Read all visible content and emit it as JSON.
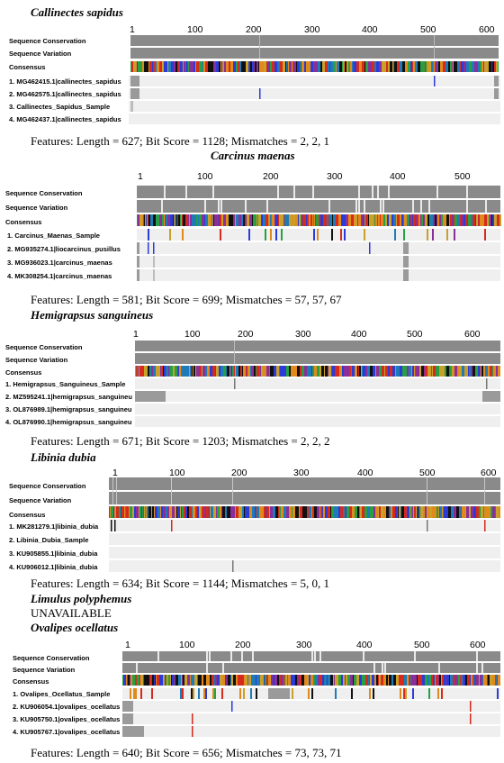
{
  "panels": [
    {
      "species": "Callinectes sapidus",
      "row_labels": [
        "Sequence Conservation",
        "Sequence Variation",
        "Consensus"
      ],
      "ticks": [
        "1",
        "100",
        "200",
        "300",
        "400",
        "500",
        "600"
      ],
      "sequences": [
        "1. MG462415.1|callinectes_sapidus",
        "2. MG462575.1|callinectes_sapidus",
        "3. Callinectes_Sapidus_Sample",
        "4. MG462437.1|callinectes_sapidus"
      ],
      "features": "Features: Length = 627; Bit Score = 1128; Mismatches = 2, 2, 1"
    },
    {
      "species": "Carcinus maenas",
      "row_labels": [
        "Sequence Conservation",
        "Sequence Variation",
        "Consensus"
      ],
      "ticks": [
        "1",
        "100",
        "200",
        "300",
        "400",
        "500"
      ],
      "sequences": [
        "1. Carcinus_Maenas_Sample",
        "2. MG935274.1|liocarcinus_pusillus",
        "3. MG936023.1|carcinus_maenas",
        "4. MK308254.1|carcinus_maenas"
      ],
      "features": "Features: Length = 581; Bit Score = 699; Mismatches = 57, 57, 67"
    },
    {
      "species": "Hemigrapsus sanguineus",
      "row_labels": [
        "Sequence Conservation",
        "Sequence Variation",
        "Consensus"
      ],
      "ticks": [
        "1",
        "100",
        "200",
        "300",
        "400",
        "500",
        "600"
      ],
      "sequences": [
        "1. Hemigrapsus_Sanguineus_Sample",
        "2. MZ595241.1|hemigrapsus_sanguineu",
        "3. OL876989.1|hemigrapsus_sanguineu",
        "4. OL876990.1|hemigrapsus_sanguineu"
      ],
      "features": "Features: Length = 671; Bit Score = 1203; Mismatches = 2, 2, 2"
    },
    {
      "species": "Libinia dubia",
      "row_labels": [
        "Sequence Conservation",
        "Sequence Variation",
        "Consensus"
      ],
      "ticks": [
        "1",
        "100",
        "200",
        "300",
        "400",
        "500",
        "600"
      ],
      "sequences": [
        "1. MK281279.1|libinia_dubia",
        "2. Libinia_Dubia_Sample",
        "3. KU905855.1|libinia_dubia",
        "4. KU906012.1|libinia_dubia"
      ],
      "features": "Features: Length = 634; Bit Score = 1144; Mismatches = 5, 0, 1"
    },
    {
      "species": "Limulus polyphemus",
      "unavailable": "UNAVAILABLE"
    },
    {
      "species": "Ovalipes ocellatus",
      "row_labels": [
        "Sequence Conservation",
        "Sequence Variation",
        "Consensus"
      ],
      "ticks": [
        "1",
        "100",
        "200",
        "300",
        "400",
        "500",
        "600"
      ],
      "sequences": [
        "1. Ovalipes_Ocellatus_Sample",
        "2. KU906054.1|ovalipes_ocellatus",
        "3. KU905750.1|ovalipes_ocellatus",
        "4. KU905767.1|ovalipes_ocellatus"
      ],
      "features": "Features: Length = 640; Bit Score = 656; Mismatches = 73, 73, 71"
    }
  ],
  "colors": {
    "bar_gray": "#8a8a8a",
    "row_bg": "#efefef",
    "nucleotides": [
      "#d62a1e",
      "#2b3bd8",
      "#26a042",
      "#111111",
      "#8a2e9a",
      "#e08a1c",
      "#c9a02a",
      "#1f7ab8"
    ]
  }
}
